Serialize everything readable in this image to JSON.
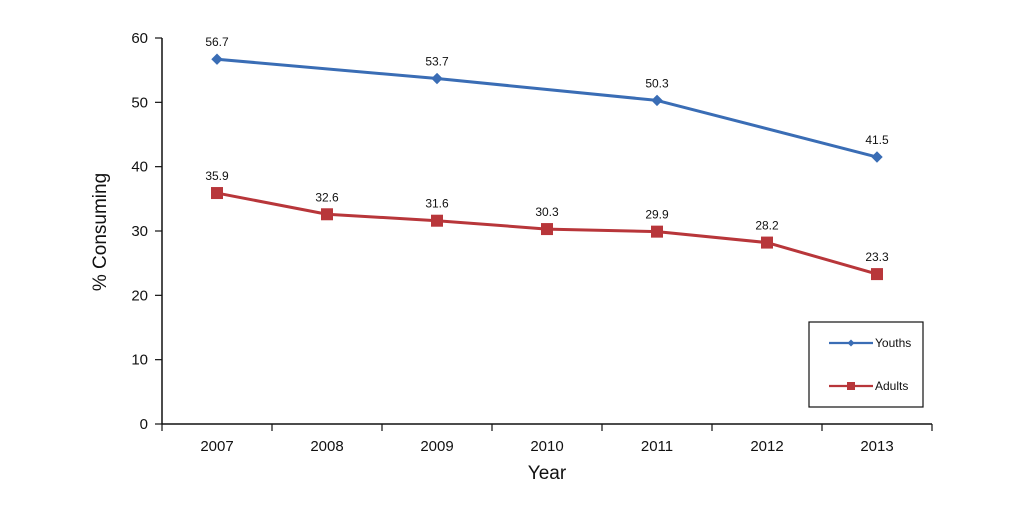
{
  "chart_data": {
    "type": "line",
    "xlabel": "Year",
    "ylabel": "% Consuming",
    "ylim": [
      0,
      60
    ],
    "yticks": [
      0,
      10,
      20,
      30,
      40,
      50,
      60
    ],
    "categories": [
      "2007",
      "2008",
      "2009",
      "2010",
      "2011",
      "2012",
      "2013"
    ],
    "grid": false,
    "legend_position": "bottom-right",
    "series": [
      {
        "name": "Youths",
        "color": "#3a6db5",
        "marker": "diamond",
        "points": [
          {
            "x": "2007",
            "y": 56.7,
            "label": "56.7"
          },
          {
            "x": "2009",
            "y": 53.7,
            "label": "53.7"
          },
          {
            "x": "2011",
            "y": 50.3,
            "label": "50.3"
          },
          {
            "x": "2013",
            "y": 41.5,
            "label": "41.5"
          }
        ]
      },
      {
        "name": "Adults",
        "color": "#b8363a",
        "marker": "square",
        "points": [
          {
            "x": "2007",
            "y": 35.9,
            "label": "35.9"
          },
          {
            "x": "2008",
            "y": 32.6,
            "label": "32.6"
          },
          {
            "x": "2009",
            "y": 31.6,
            "label": "31.6"
          },
          {
            "x": "2010",
            "y": 30.3,
            "label": "30.3"
          },
          {
            "x": "2011",
            "y": 29.9,
            "label": "29.9"
          },
          {
            "x": "2012",
            "y": 28.2,
            "label": "28.2"
          },
          {
            "x": "2013",
            "y": 23.3,
            "label": "23.3"
          }
        ]
      }
    ]
  }
}
